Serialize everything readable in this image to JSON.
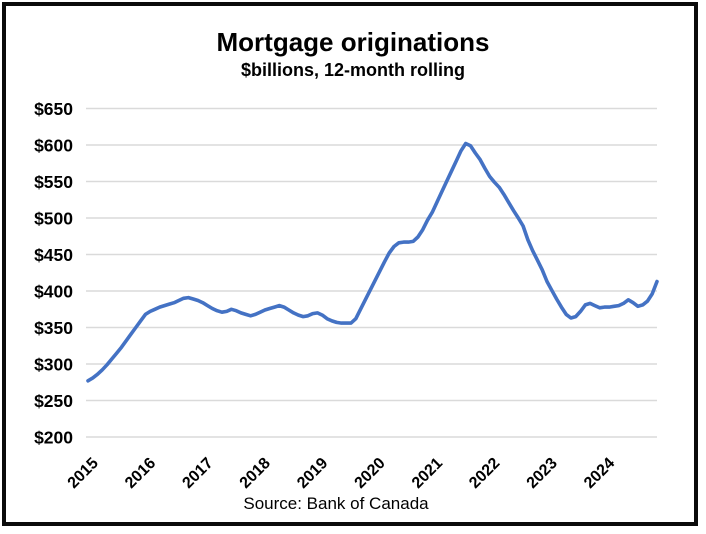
{
  "header": {
    "title": "Mortgage originations",
    "subtitle": "$billions, 12-month rolling"
  },
  "footer": {
    "source": "Source: Bank of Canada"
  },
  "colors": {
    "line": "#4472C4",
    "gridline": "#dadada",
    "text": "#000000",
    "frame_border": "#0a0a0a"
  },
  "chart_data": {
    "type": "line",
    "title": "Mortgage originations",
    "subtitle": "$billions, 12-month rolling",
    "source": "Source: Bank of Canada",
    "xlabel": "",
    "ylabel": "$billions, 12-month rolling",
    "x_tick_labels": [
      "2015",
      "2016",
      "2017",
      "2018",
      "2019",
      "2020",
      "2021",
      "2022",
      "2023",
      "2024"
    ],
    "y_ticks": [
      200,
      250,
      300,
      350,
      400,
      450,
      500,
      550,
      600,
      650
    ],
    "y_tick_prefix": "$",
    "ylim": [
      200,
      650
    ],
    "grid": "horizontal",
    "legend_position": "none",
    "x_frequency": "monthly",
    "x_range": "Jan 2015 - Dec 2024",
    "series": [
      {
        "name": "Mortgage originations ($billions, 12-month rolling)",
        "values": [
          277,
          281,
          286,
          292,
          299,
          307,
          315,
          323,
          332,
          341,
          350,
          359,
          368,
          372,
          375,
          378,
          380,
          382,
          384,
          387,
          390,
          391,
          389,
          387,
          384,
          380,
          376,
          373,
          371,
          372,
          375,
          373,
          370,
          368,
          366,
          368,
          371,
          374,
          376,
          378,
          380,
          378,
          374,
          370,
          367,
          365,
          366,
          369,
          370,
          367,
          362,
          359,
          357,
          356,
          356,
          356,
          362,
          375,
          388,
          401,
          414,
          427,
          440,
          452,
          461,
          466,
          467,
          467,
          468,
          474,
          484,
          497,
          508,
          522,
          536,
          550,
          564,
          578,
          592,
          602,
          599,
          589,
          580,
          568,
          557,
          549,
          542,
          532,
          521,
          510,
          500,
          489,
          470,
          455,
          442,
          429,
          413,
          401,
          389,
          378,
          368,
          363,
          365,
          372,
          381,
          383,
          380,
          377,
          378,
          378,
          379,
          380,
          383,
          388,
          384,
          379,
          381,
          386,
          396,
          413
        ]
      }
    ]
  }
}
